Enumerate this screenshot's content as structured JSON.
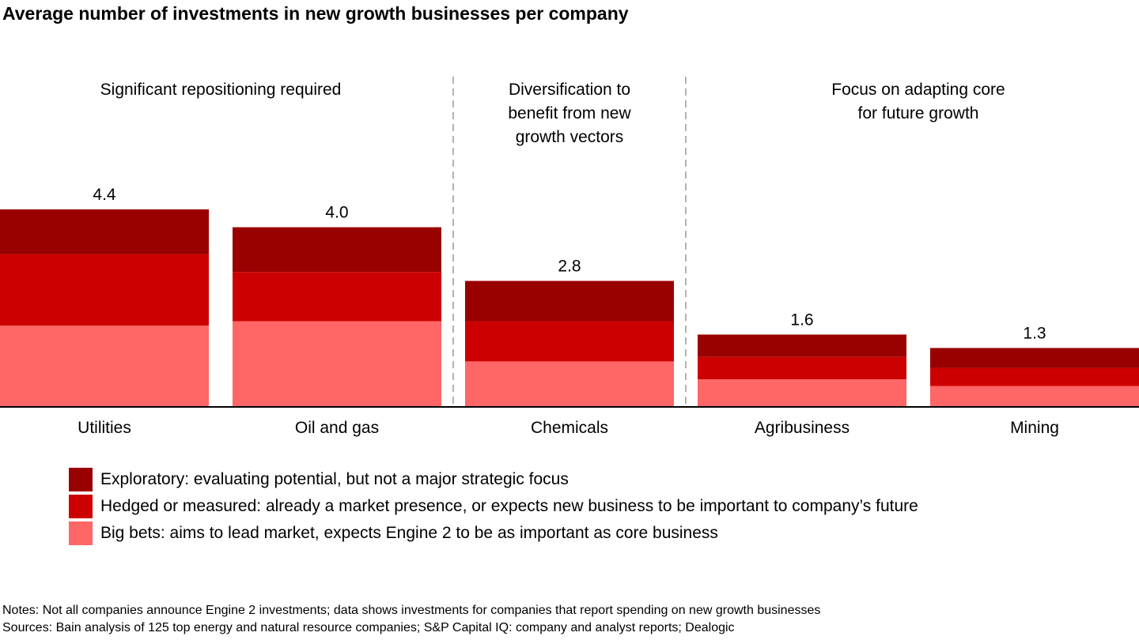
{
  "chart_data": {
    "type": "bar",
    "stacked": true,
    "title": "Average number of investments in new growth businesses per company",
    "xlabel": "",
    "ylabel": "",
    "ylim": [
      0,
      4.6
    ],
    "grid": false,
    "categories": [
      "Utilities",
      "Oil and gas",
      "Chemicals",
      "Agribusiness",
      "Mining"
    ],
    "totals": [
      "4.4",
      "4.0",
      "2.8",
      "1.6",
      "1.3"
    ],
    "series": [
      {
        "name": "Big bets: aims to lead market, expects Engine 2 to be as important as core business",
        "color": "#ff6666",
        "values": [
          1.8,
          1.9,
          1.0,
          0.6,
          0.45
        ]
      },
      {
        "name": "Hedged or measured: already a market presence, or expects new business to be important to company’s future",
        "color": "#cc0000",
        "values": [
          1.6,
          1.1,
          0.9,
          0.5,
          0.4
        ]
      },
      {
        "name": "Exploratory: evaluating potential, but not a major strategic focus",
        "color": "#990000",
        "values": [
          1.0,
          1.0,
          0.9,
          0.5,
          0.45
        ]
      }
    ],
    "groups": [
      {
        "label": [
          "Significant repositioning required"
        ],
        "categories": [
          0,
          1
        ]
      },
      {
        "label": [
          "Diversification to",
          "benefit from new",
          "growth vectors"
        ],
        "categories": [
          2
        ]
      },
      {
        "label": [
          "Focus on adapting core",
          "for future growth"
        ],
        "categories": [
          3,
          4
        ]
      }
    ],
    "legend_placement": "bottom-left"
  },
  "notes": "Notes: Not all companies announce Engine 2 investments; data shows investments for companies that report spending on new growth businesses",
  "sources": "Sources: Bain analysis of 125 top energy and natural resource companies; S&P Capital IQ: company and analyst reports; Dealogic"
}
